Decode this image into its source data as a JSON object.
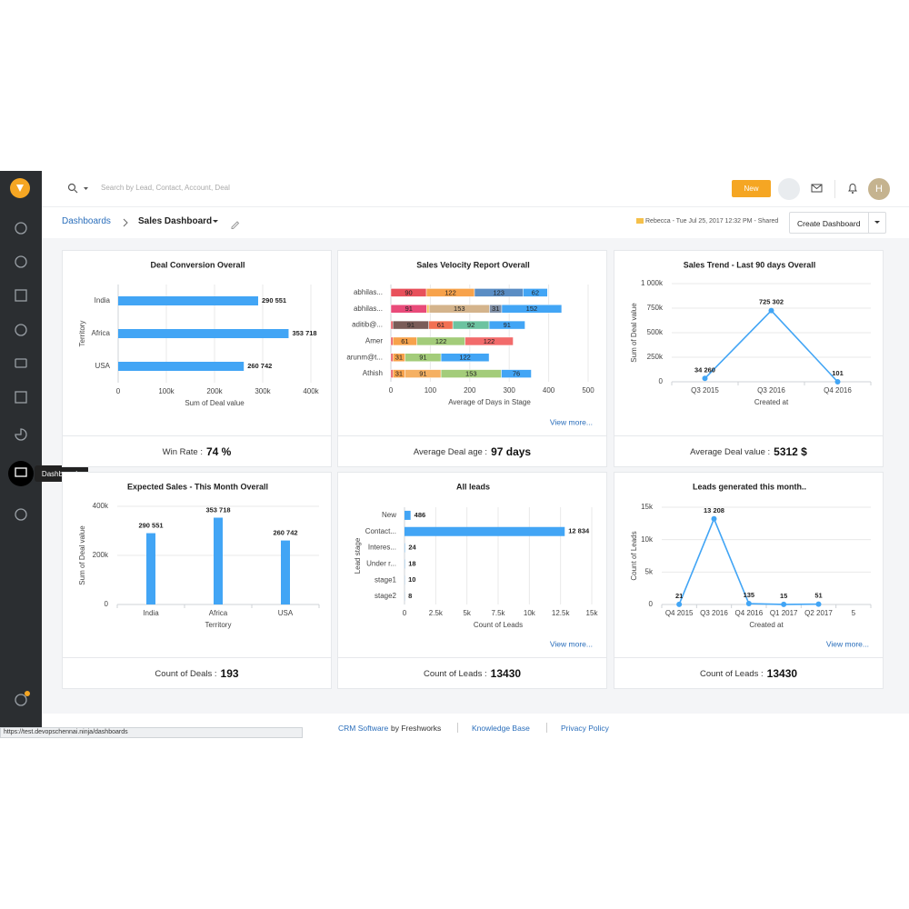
{
  "header": {
    "search_placeholder": "Search by Lead, Contact, Account, Deal",
    "new_button": "New",
    "avatar": "H"
  },
  "sidebar": {
    "tooltip": "Dashboards"
  },
  "breadcrumb": {
    "root": "Dashboards",
    "current": "Sales Dashboard",
    "meta": "Rebecca - Tue Jul 25, 2017 12:32 PM - Shared",
    "create_button": "Create Dashboard"
  },
  "chart_data": [
    {
      "type": "bar",
      "orientation": "horizontal",
      "title": "Deal Conversion Overall",
      "categories": [
        "India",
        "Africa",
        "USA"
      ],
      "values": [
        290551,
        353718,
        260742
      ],
      "value_labels": [
        "290 551",
        "353 718",
        "260 742"
      ],
      "color": "#42a5f5",
      "xlim": [
        0,
        400000
      ],
      "xticks": [
        0,
        {
          "value": 100000,
          "label": "100k"
        },
        {
          "value": 200000,
          "label": "200k"
        },
        {
          "value": 300000,
          "label": "300k"
        },
        {
          "value": 400000,
          "label": "400k"
        }
      ],
      "xlabel": "Sum of Deal value",
      "ylabel": "Territory",
      "grid": true,
      "kpi_label": "Win Rate :",
      "kpi_value": "74 %"
    },
    {
      "type": "stacked_bar",
      "orientation": "horizontal",
      "title": "Sales Velocity Report Overall",
      "categories": [
        "abhilas...",
        "abhilas...",
        "aditib@...",
        "Amer",
        "arunm@t...",
        "Athish"
      ],
      "segments": [
        [
          {
            "value": 90,
            "color": "#e8505b"
          },
          {
            "value": 122,
            "color": "#f7a24b"
          },
          {
            "value": 123,
            "color": "#5a8dc4"
          },
          {
            "value": 62,
            "color": "#42a5f5"
          }
        ],
        [
          {
            "value": 91,
            "color": "#e94b7a"
          },
          {
            "value": 6,
            "color": "#f0c75e"
          },
          {
            "value": 153,
            "color": "#d4b48c"
          },
          {
            "value": 31,
            "color": "#7f8fa6"
          },
          {
            "value": 152,
            "color": "#42a5f5"
          }
        ],
        [
          {
            "value": 5,
            "color": "#e8505b"
          },
          {
            "value": 91,
            "color": "#7a5c58"
          },
          {
            "value": 61,
            "color": "#f27052"
          },
          {
            "value": 92,
            "color": "#6cc3a0"
          },
          {
            "value": 91,
            "color": "#42a5f5"
          }
        ],
        [
          {
            "value": 5,
            "color": "#e8505b"
          },
          {
            "value": 61,
            "color": "#f7a24b"
          },
          {
            "value": 122,
            "color": "#a3cc7a"
          },
          {
            "value": 122,
            "color": "#f26b6b"
          }
        ],
        [
          {
            "value": 5,
            "color": "#e8505b"
          },
          {
            "value": 31,
            "color": "#f7a24b"
          },
          {
            "value": 91,
            "color": "#a3cc7a"
          },
          {
            "value": 122,
            "color": "#42a5f5"
          }
        ],
        [
          {
            "value": 5,
            "color": "#e8505b"
          },
          {
            "value": 31,
            "color": "#f7a24b"
          },
          {
            "value": 91,
            "color": "#f5b062"
          },
          {
            "value": 153,
            "color": "#a3cc7a"
          },
          {
            "value": 76,
            "color": "#42a5f5"
          }
        ]
      ],
      "xlim": [
        0,
        500
      ],
      "xticks": [
        0,
        100,
        200,
        300,
        400,
        500
      ],
      "xlabel": "Average of Days in Stage",
      "grid": true,
      "link": "View more...",
      "kpi_label": "Average Deal age :",
      "kpi_value": "97 days"
    },
    {
      "type": "line",
      "title": "Sales Trend - Last 90 days Overall",
      "categories": [
        "Q3 2015",
        "Q3 2016",
        "Q4 2016"
      ],
      "values": [
        34260,
        725302,
        101
      ],
      "value_labels": [
        "34 260",
        "725 302",
        "101"
      ],
      "color": "#42a5f5",
      "ylim": [
        0,
        1000000
      ],
      "yticks": [
        0,
        {
          "value": 250000,
          "label": "250k"
        },
        {
          "value": 500000,
          "label": "500k"
        },
        {
          "value": 750000,
          "label": "750k"
        },
        {
          "value": 1000000,
          "label": "1 000k"
        }
      ],
      "xlabel": "Created at",
      "ylabel": "Sum of Deal value",
      "grid": true,
      "kpi_label": "Average Deal value :",
      "kpi_value": "5312 $"
    },
    {
      "type": "bar",
      "orientation": "vertical",
      "title": "Expected Sales - This Month Overall",
      "categories": [
        "India",
        "Africa",
        "USA"
      ],
      "values": [
        290551,
        353718,
        260742
      ],
      "value_labels": [
        "290 551",
        "353 718",
        "260 742"
      ],
      "color": "#42a5f5",
      "ylim": [
        0,
        400000
      ],
      "yticks": [
        0,
        {
          "value": 200000,
          "label": "200k"
        },
        {
          "value": 400000,
          "label": "400k"
        }
      ],
      "xlabel": "Territory",
      "ylabel": "Sum of Deal value",
      "grid": true,
      "kpi_label": "Count of Deals :",
      "kpi_value": "193"
    },
    {
      "type": "bar",
      "orientation": "horizontal",
      "title": "All leads",
      "categories": [
        "New",
        "Contact...",
        "Interes...",
        "Under r...",
        "stage1",
        "stage2"
      ],
      "values": [
        486,
        12834,
        24,
        18,
        10,
        8
      ],
      "value_labels": [
        "486",
        "12 834",
        "24",
        "18",
        "10",
        "8"
      ],
      "color": "#42a5f5",
      "xlim": [
        0,
        15000
      ],
      "xticks": [
        0,
        {
          "value": 2500,
          "label": "2.5k"
        },
        {
          "value": 5000,
          "label": "5k"
        },
        {
          "value": 7500,
          "label": "7.5k"
        },
        {
          "value": 10000,
          "label": "10k"
        },
        {
          "value": 12500,
          "label": "12.5k"
        },
        {
          "value": 15000,
          "label": "15k"
        }
      ],
      "xlabel": "Count of Leads",
      "ylabel": "Lead stage",
      "grid": true,
      "link": "View more...",
      "kpi_label": "Count of Leads :",
      "kpi_value": "13430"
    },
    {
      "type": "line",
      "title": "Leads generated this month..",
      "categories": [
        "Q4 2015",
        "Q3 2016",
        "Q4 2016",
        "Q1 2017",
        "Q2 2017",
        "5"
      ],
      "values": [
        21,
        13208,
        135,
        15,
        51,
        null
      ],
      "value_labels": [
        "21",
        "13 208",
        "135",
        "15",
        "51",
        null
      ],
      "color": "#42a5f5",
      "ylim": [
        0,
        15000
      ],
      "yticks": [
        0,
        {
          "value": 5000,
          "label": "5k"
        },
        {
          "value": 10000,
          "label": "10k"
        },
        {
          "value": 15000,
          "label": "15k"
        }
      ],
      "xlabel": "Created at",
      "ylabel": "Count of Leads",
      "grid": true,
      "link": "View more...",
      "kpi_label": "Count of Leads :",
      "kpi_value": "13430"
    }
  ],
  "footer": {
    "crm_link": "CRM Software",
    "by": "by Freshworks",
    "kb": "Knowledge Base",
    "privacy": "Privacy Policy"
  },
  "status_url": "https://test.devopschennai.ninja/dashboards"
}
